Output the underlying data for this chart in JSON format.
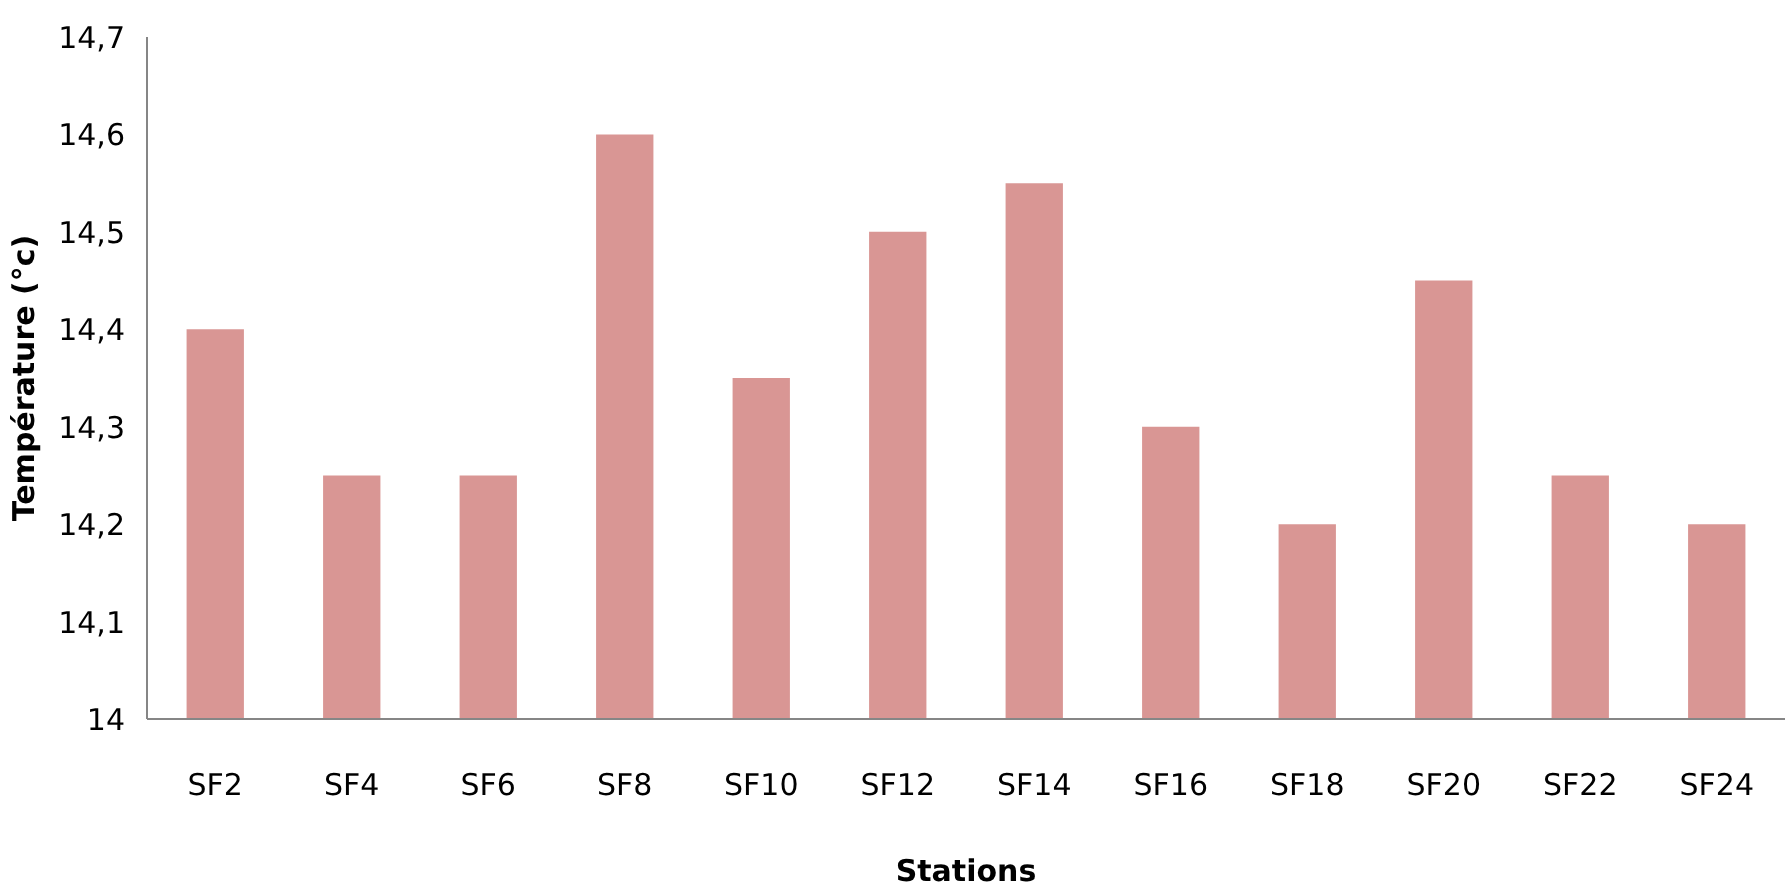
{
  "chart_data": {
    "type": "bar",
    "xlabel": "Stations",
    "ylabel": "Température (°c)",
    "categories": [
      "SF2",
      "SF4",
      "SF6",
      "SF8",
      "SF10",
      "SF12",
      "SF14",
      "SF16",
      "SF18",
      "SF20",
      "SF22",
      "SF24"
    ],
    "values": [
      14.4,
      14.25,
      14.25,
      14.6,
      14.35,
      14.5,
      14.55,
      14.3,
      14.2,
      14.45,
      14.25,
      14.2
    ],
    "color": "#d99694",
    "ylim": [
      14,
      14.7
    ],
    "yticks": [
      14,
      {
        "value": 14.1,
        "label": "14,1"
      },
      {
        "value": 14.2,
        "label": "14,2"
      },
      {
        "value": 14.3,
        "label": "14,3"
      },
      {
        "value": 14.4,
        "label": "14,4"
      },
      {
        "value": 14.5,
        "label": "14,5"
      },
      {
        "value": 14.6,
        "label": "14,6"
      },
      {
        "value": 14.7,
        "label": "14,7"
      }
    ],
    "grid": false
  }
}
